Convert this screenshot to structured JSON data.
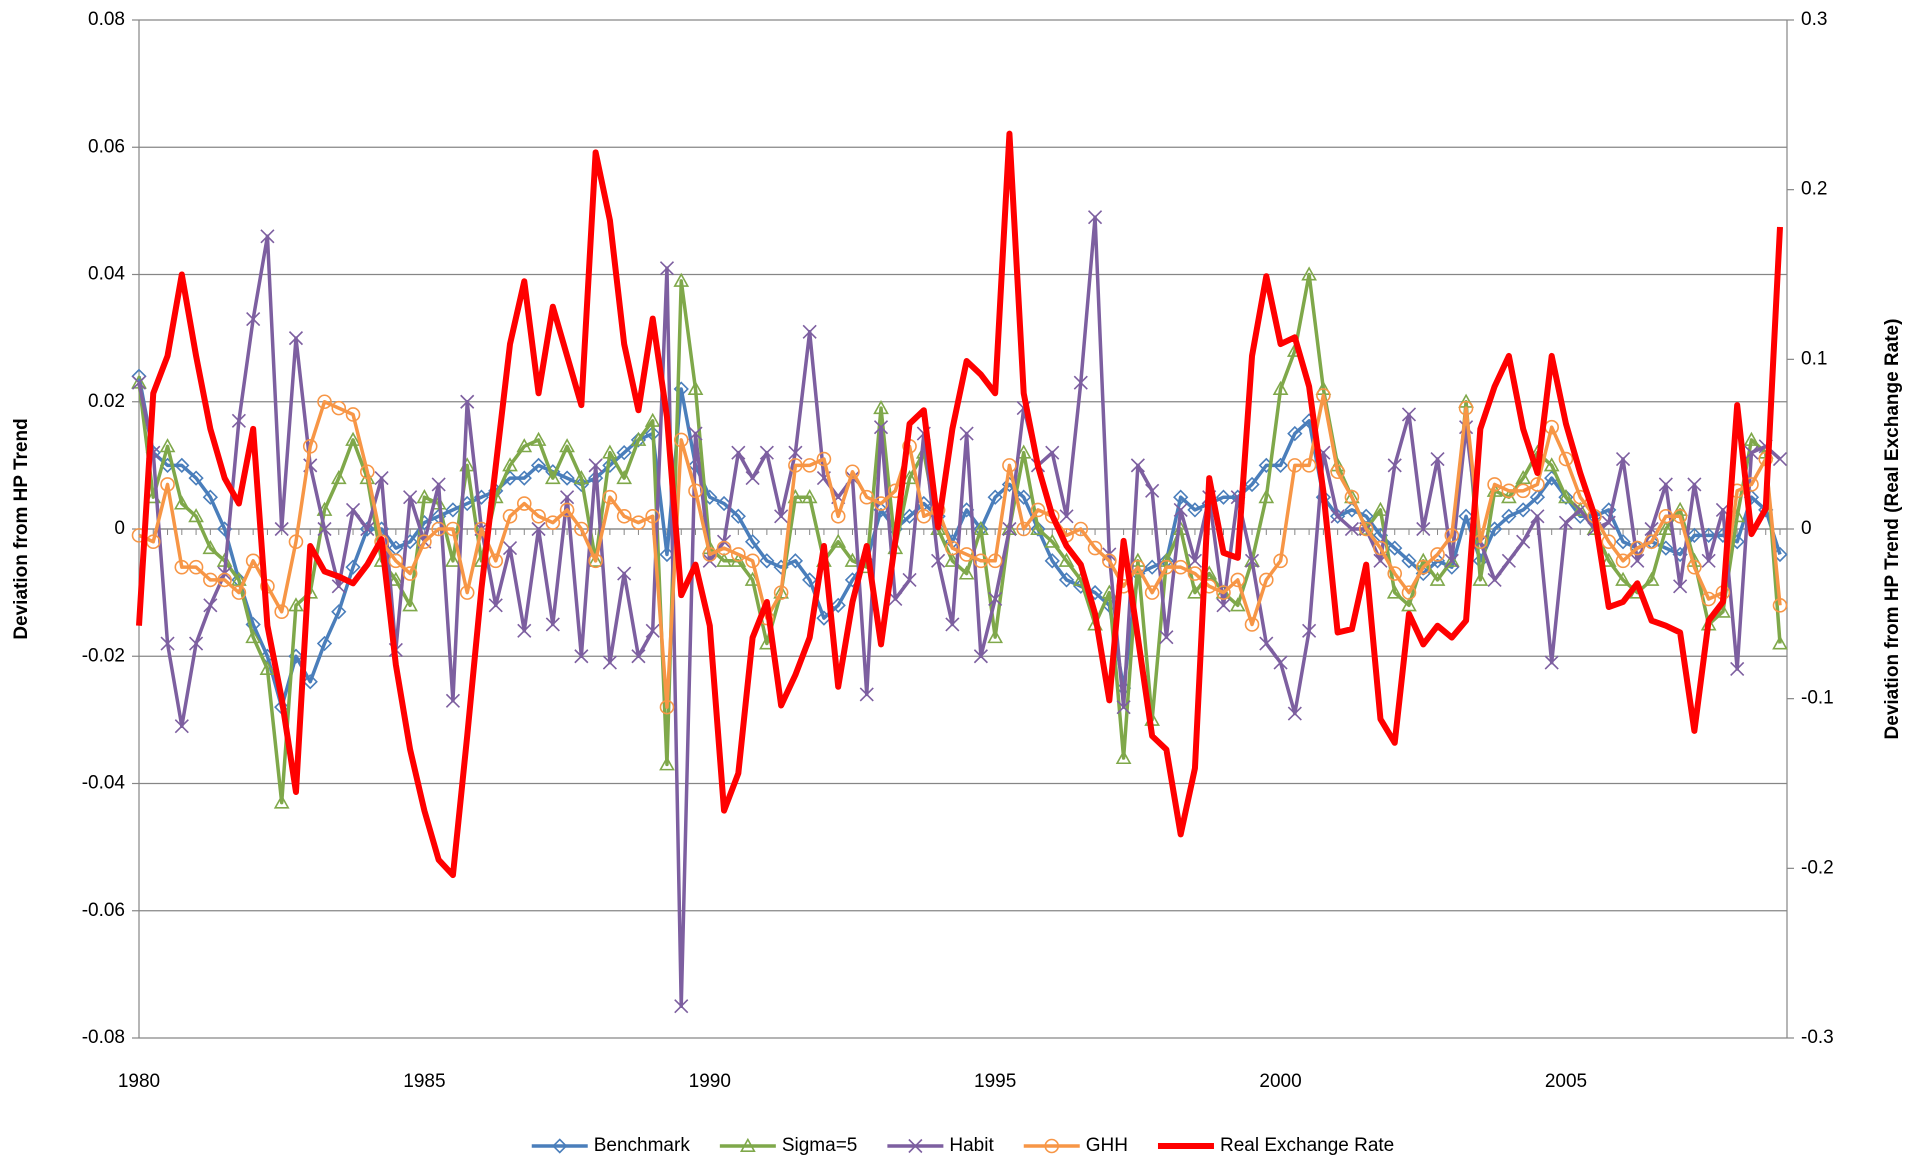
{
  "chart_data": {
    "type": "line",
    "y_label": "Deviation from HP Trend",
    "y2_label": "Deviation from HP Trend (Real Exchange Rate)",
    "categories": [
      "1980",
      null,
      null,
      null,
      null,
      null,
      null,
      null,
      null,
      null,
      null,
      null,
      null,
      null,
      null,
      null,
      null,
      null,
      null,
      null,
      "1985",
      null,
      null,
      null,
      null,
      null,
      null,
      null,
      null,
      null,
      null,
      null,
      null,
      null,
      null,
      null,
      null,
      null,
      null,
      null,
      "1990",
      null,
      null,
      null,
      null,
      null,
      null,
      null,
      null,
      null,
      null,
      null,
      null,
      null,
      null,
      null,
      null,
      null,
      null,
      null,
      "1995",
      null,
      null,
      null,
      null,
      null,
      null,
      null,
      null,
      null,
      null,
      null,
      null,
      null,
      null,
      null,
      null,
      null,
      null,
      null,
      "2000",
      null,
      null,
      null,
      null,
      null,
      null,
      null,
      null,
      null,
      null,
      null,
      null,
      null,
      null,
      null,
      null,
      null,
      null,
      null,
      "2005",
      null,
      null,
      null,
      null,
      null,
      null,
      null,
      null,
      null,
      null,
      null,
      null,
      null,
      null,
      null
    ],
    "ylim": [
      -0.08,
      0.08
    ],
    "yticks": [
      -0.08,
      -0.06,
      -0.04,
      -0.02,
      0,
      0.02,
      0.04,
      0.06,
      0.08
    ],
    "y2lim": [
      -0.3,
      0.3
    ],
    "y2ticks": [
      -0.3,
      -0.2,
      -0.1,
      0,
      0.1,
      0.2,
      0.3
    ],
    "grid": true,
    "legend": "bottom",
    "series": [
      {
        "name": "Benchmark",
        "color": "#4a7ebb",
        "marker": "diamond",
        "values": [
          0.024,
          0.012,
          0.01,
          0.01,
          0.008,
          0.005,
          0.0,
          -0.008,
          -0.015,
          -0.02,
          -0.028,
          -0.02,
          -0.024,
          -0.018,
          -0.013,
          -0.006,
          0.0,
          0.0,
          -0.003,
          -0.002,
          0.001,
          0.002,
          0.003,
          0.004,
          0.005,
          0.006,
          0.008,
          0.008,
          0.01,
          0.009,
          0.008,
          0.007,
          0.008,
          0.01,
          0.012,
          0.014,
          0.015,
          -0.004,
          0.022,
          0.01,
          0.005,
          0.004,
          0.002,
          -0.002,
          -0.005,
          -0.006,
          -0.005,
          -0.008,
          -0.014,
          -0.012,
          -0.008,
          -0.005,
          0.003,
          0.0,
          0.002,
          0.004,
          0.002,
          -0.002,
          0.003,
          0.0,
          0.005,
          0.007,
          0.005,
          0.0,
          -0.005,
          -0.008,
          -0.009,
          -0.01,
          -0.012,
          -0.025,
          -0.007,
          -0.006,
          -0.005,
          0.005,
          0.003,
          0.004,
          0.005,
          0.005,
          0.007,
          0.01,
          0.01,
          0.015,
          0.017,
          0.005,
          0.002,
          0.003,
          0.002,
          -0.001,
          -0.003,
          -0.005,
          -0.007,
          -0.005,
          -0.006,
          0.002,
          -0.005,
          0.0,
          0.002,
          0.003,
          0.005,
          0.008,
          0.005,
          0.002,
          0.002,
          0.003,
          -0.002,
          -0.003,
          -0.002,
          -0.003,
          -0.004,
          -0.001,
          -0.001,
          -0.001,
          -0.002,
          0.005,
          0.003,
          -0.004
        ]
      },
      {
        "name": "Sigma=5",
        "color": "#7fa84a",
        "marker": "triangle",
        "values": [
          0.023,
          0.005,
          0.013,
          0.004,
          0.002,
          -0.003,
          -0.005,
          -0.008,
          -0.017,
          -0.022,
          -0.043,
          -0.012,
          -0.01,
          0.003,
          0.008,
          0.014,
          0.008,
          -0.005,
          -0.008,
          -0.012,
          0.005,
          0.004,
          -0.005,
          0.01,
          -0.005,
          0.005,
          0.01,
          0.013,
          0.014,
          0.008,
          0.013,
          0.008,
          -0.005,
          0.012,
          0.008,
          0.014,
          0.017,
          -0.037,
          0.039,
          0.022,
          -0.003,
          -0.005,
          -0.005,
          -0.008,
          -0.018,
          -0.01,
          0.005,
          0.005,
          -0.005,
          -0.002,
          -0.005,
          -0.006,
          0.019,
          -0.003,
          0.008,
          0.012,
          0.0,
          -0.005,
          -0.007,
          0.0,
          -0.017,
          0.0,
          0.012,
          0.0,
          -0.002,
          -0.005,
          -0.008,
          -0.015,
          -0.01,
          -0.036,
          -0.005,
          -0.03,
          -0.005,
          0.0,
          -0.01,
          -0.007,
          -0.01,
          -0.012,
          -0.005,
          0.005,
          0.022,
          0.028,
          0.04,
          0.022,
          0.01,
          0.005,
          0.0,
          0.003,
          -0.01,
          -0.012,
          -0.005,
          -0.008,
          -0.005,
          0.02,
          -0.008,
          0.006,
          0.005,
          0.008,
          0.012,
          0.01,
          0.005,
          0.003,
          0.0,
          -0.005,
          -0.008,
          -0.01,
          -0.008,
          0.0,
          0.003,
          -0.005,
          -0.015,
          -0.013,
          0.002,
          0.014,
          0.012,
          -0.018
        ]
      },
      {
        "name": "Habit",
        "color": "#7d5fa0",
        "marker": "x",
        "values": [
          0.023,
          0.012,
          -0.018,
          -0.031,
          -0.018,
          -0.012,
          -0.007,
          0.017,
          0.033,
          0.046,
          0.0,
          0.03,
          0.01,
          0.0,
          -0.009,
          0.003,
          0.0,
          0.008,
          -0.019,
          0.005,
          -0.002,
          0.007,
          -0.027,
          0.02,
          0.0,
          -0.012,
          -0.003,
          -0.016,
          0.0,
          -0.015,
          0.005,
          -0.02,
          0.01,
          -0.021,
          -0.007,
          -0.02,
          -0.016,
          0.041,
          -0.075,
          0.015,
          -0.005,
          -0.002,
          0.012,
          0.008,
          0.012,
          0.002,
          0.012,
          0.031,
          0.008,
          0.005,
          0.008,
          -0.026,
          0.016,
          -0.011,
          -0.008,
          0.015,
          -0.005,
          -0.015,
          0.015,
          -0.02,
          -0.011,
          0.0,
          0.019,
          0.01,
          0.012,
          0.002,
          0.023,
          0.049,
          -0.004,
          -0.028,
          0.01,
          0.006,
          -0.017,
          0.003,
          -0.005,
          0.005,
          -0.012,
          0.005,
          -0.005,
          -0.018,
          -0.021,
          -0.029,
          -0.016,
          0.012,
          0.002,
          0.0,
          0.0,
          -0.005,
          0.01,
          0.018,
          0.0,
          0.011,
          -0.005,
          0.016,
          -0.002,
          -0.008,
          -0.005,
          -0.002,
          0.002,
          -0.021,
          0.001,
          0.003,
          0.0,
          0.001,
          0.011,
          -0.005,
          0.0,
          0.007,
          -0.009,
          0.007,
          -0.005,
          0.003,
          -0.022,
          0.012,
          0.013,
          0.011
        ]
      },
      {
        "name": "GHH",
        "color": "#f79646",
        "marker": "circle",
        "values": [
          -0.001,
          -0.002,
          0.007,
          -0.006,
          -0.006,
          -0.008,
          -0.008,
          -0.01,
          -0.005,
          -0.009,
          -0.013,
          -0.002,
          0.013,
          0.02,
          0.019,
          0.018,
          0.009,
          -0.002,
          -0.005,
          -0.007,
          -0.002,
          0.0,
          0.0,
          -0.01,
          0.0,
          -0.005,
          0.002,
          0.004,
          0.002,
          0.001,
          0.003,
          0.0,
          -0.005,
          0.005,
          0.002,
          0.001,
          0.002,
          -0.028,
          0.014,
          0.006,
          -0.004,
          -0.003,
          -0.004,
          -0.005,
          -0.014,
          -0.01,
          0.01,
          0.01,
          0.011,
          0.002,
          0.009,
          0.005,
          0.004,
          0.006,
          0.013,
          0.002,
          0.003,
          -0.003,
          -0.004,
          -0.005,
          -0.005,
          0.01,
          0.0,
          0.003,
          0.002,
          -0.001,
          0.0,
          -0.003,
          -0.005,
          -0.009,
          -0.006,
          -0.01,
          -0.006,
          -0.006,
          -0.007,
          -0.009,
          -0.01,
          -0.008,
          -0.015,
          -0.008,
          -0.005,
          0.01,
          0.01,
          0.021,
          0.009,
          0.005,
          0.0,
          -0.003,
          -0.007,
          -0.01,
          -0.006,
          -0.004,
          -0.001,
          0.019,
          -0.002,
          0.007,
          0.006,
          0.006,
          0.007,
          0.016,
          0.011,
          0.005,
          0.002,
          -0.002,
          -0.005,
          -0.003,
          -0.002,
          0.002,
          0.002,
          -0.006,
          -0.011,
          -0.01,
          0.006,
          0.007,
          0.011,
          -0.012
        ]
      },
      {
        "name": "Real Exchange Rate",
        "color": "#ff0000",
        "axis": "y2",
        "values": [
          -0.057,
          0.08,
          0.102,
          0.15,
          0.102,
          0.059,
          0.03,
          0.015,
          0.059,
          -0.057,
          -0.1,
          -0.155,
          -0.01,
          -0.025,
          -0.028,
          -0.032,
          -0.021,
          -0.006,
          -0.08,
          -0.13,
          -0.166,
          -0.195,
          -0.204,
          -0.122,
          -0.035,
          0.037,
          0.109,
          0.146,
          0.08,
          0.131,
          0.102,
          0.073,
          0.222,
          0.182,
          0.109,
          0.07,
          0.124,
          0.066,
          -0.039,
          -0.021,
          -0.057,
          -0.166,
          -0.144,
          -0.064,
          -0.043,
          -0.104,
          -0.086,
          -0.064,
          -0.01,
          -0.093,
          -0.043,
          -0.01,
          -0.068,
          -0.007,
          0.062,
          0.07,
          0.001,
          0.059,
          0.099,
          0.091,
          0.08,
          0.233,
          0.08,
          0.037,
          0.008,
          -0.01,
          -0.021,
          -0.05,
          -0.101,
          -0.007,
          -0.064,
          -0.122,
          -0.13,
          -0.18,
          -0.141,
          0.03,
          -0.014,
          -0.017,
          0.102,
          0.149,
          0.109,
          0.113,
          0.084,
          0.022,
          -0.061,
          -0.059,
          -0.021,
          -0.112,
          -0.126,
          -0.05,
          -0.068,
          -0.057,
          -0.064,
          -0.054,
          0.059,
          0.084,
          0.102,
          0.059,
          0.033,
          0.102,
          0.062,
          0.033,
          0.008,
          -0.046,
          -0.043,
          -0.032,
          -0.054,
          -0.057,
          -0.061,
          -0.119,
          -0.054,
          -0.043,
          0.073,
          -0.003,
          0.012,
          0.178
        ]
      }
    ]
  }
}
